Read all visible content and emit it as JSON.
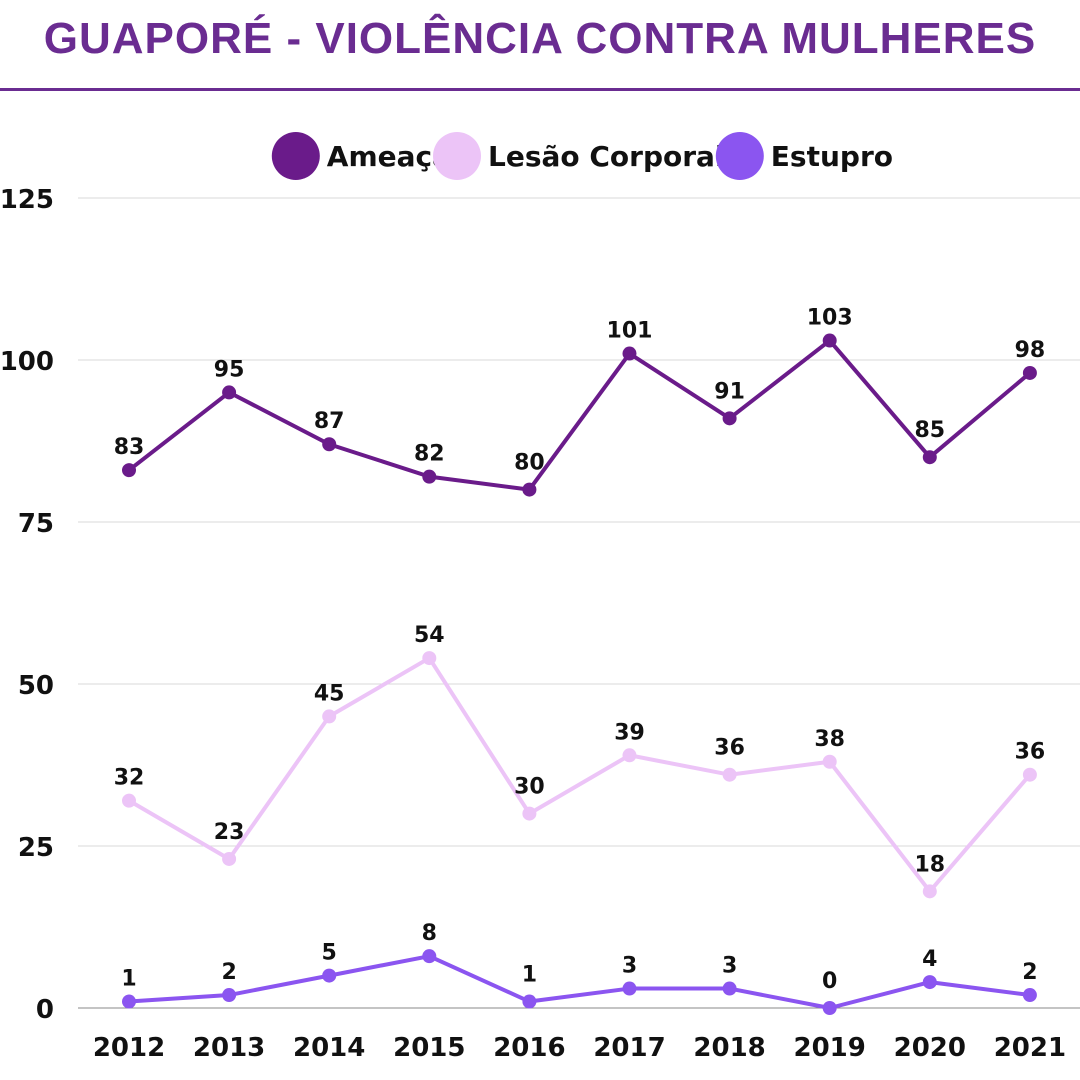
{
  "title": "GUAPORÉ - VIOLÊNCIA CONTRA MULHERES",
  "colors": {
    "title": "#6a2c91",
    "rule": "#6a2c91",
    "grid": "#d9d9d9",
    "axis": "#888888"
  },
  "chart_data": {
    "type": "line",
    "title": "GUAPORÉ - VIOLÊNCIA CONTRA MULHERES",
    "xlabel": "",
    "ylabel": "",
    "categories": [
      "2012",
      "2013",
      "2014",
      "2015",
      "2016",
      "2017",
      "2018",
      "2019",
      "2020",
      "2021"
    ],
    "ylim": [
      0,
      125
    ],
    "yticks": [
      0,
      25,
      50,
      75,
      100,
      125
    ],
    "grid": true,
    "legend_position": "top-center",
    "series": [
      {
        "name": "Ameaça",
        "color": "#6a1b8a",
        "values": [
          83,
          95,
          87,
          82,
          80,
          101,
          91,
          103,
          85,
          98
        ]
      },
      {
        "name": "Lesão Corporal",
        "color": "#ecc4f7",
        "values": [
          32,
          23,
          45,
          54,
          30,
          39,
          36,
          38,
          18,
          36
        ]
      },
      {
        "name": "Estupro",
        "color": "#8b55f0",
        "values": [
          1,
          2,
          5,
          8,
          1,
          3,
          3,
          0,
          4,
          2
        ]
      }
    ]
  }
}
